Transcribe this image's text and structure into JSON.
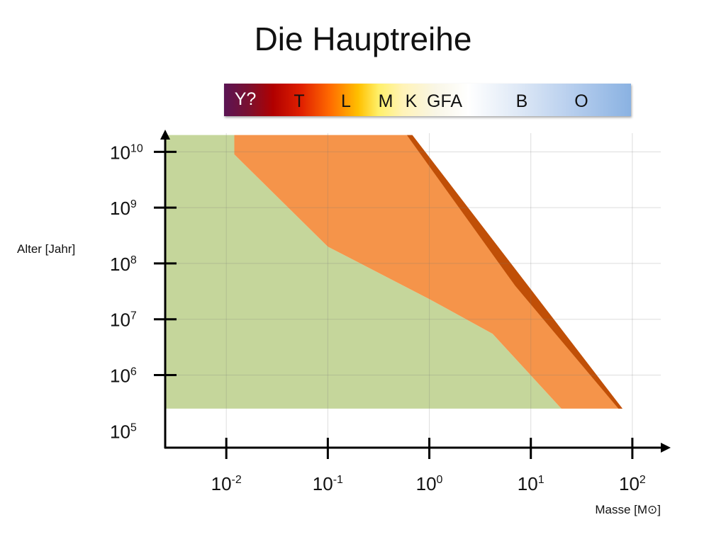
{
  "title": "Die Hauptreihe",
  "spectral_classes": [
    "Y?",
    "T",
    "L",
    "M",
    "K",
    "GFA",
    "B",
    "O"
  ],
  "chart_data": {
    "type": "area",
    "xlabel": "Masse [M⊙]",
    "ylabel": "Alter [Jahr]",
    "x_scale": "log",
    "y_scale": "log",
    "x_ticks": [
      {
        "base": "10",
        "exp": "-2",
        "value": 0.01
      },
      {
        "base": "10",
        "exp": "-1",
        "value": 0.1
      },
      {
        "base": "10",
        "exp": "0",
        "value": 1
      },
      {
        "base": "10",
        "exp": "1",
        "value": 10
      },
      {
        "base": "10",
        "exp": "2",
        "value": 100
      }
    ],
    "y_ticks": [
      {
        "base": "10",
        "exp": "5",
        "value": 100000
      },
      {
        "base": "10",
        "exp": "6",
        "value": 1000000
      },
      {
        "base": "10",
        "exp": "7",
        "value": 10000000
      },
      {
        "base": "10",
        "exp": "8",
        "value": 100000000
      },
      {
        "base": "10",
        "exp": "9",
        "value": 1000000000
      },
      {
        "base": "10",
        "exp": "10",
        "value": 10000000000
      }
    ],
    "xlim": [
      0.0025,
      200
    ],
    "ylim": [
      50000,
      25000000000
    ],
    "grid": true,
    "regions": [
      {
        "color": "#c5d69b",
        "points": [
          [
            0.0025,
            20000000000
          ],
          [
            0.0025,
            250000
          ],
          [
            20,
            250000
          ],
          [
            4.2,
            5500000
          ],
          [
            1,
            23000000
          ],
          [
            0.1,
            200000000
          ],
          [
            0.012,
            9000000000
          ],
          [
            0.012,
            20000000000
          ]
        ]
      },
      {
        "color": "#f5944a",
        "points": [
          [
            0.012,
            20000000000
          ],
          [
            0.012,
            9000000000
          ],
          [
            0.1,
            200000000
          ],
          [
            1,
            23000000
          ],
          [
            4.2,
            5500000
          ],
          [
            20,
            250000
          ],
          [
            80,
            250000
          ],
          [
            0.6,
            20000000000
          ]
        ]
      },
      {
        "color": "#c04f07",
        "points": [
          [
            0.6,
            20000000000
          ],
          [
            0.68,
            20000000000
          ],
          [
            80,
            250000
          ],
          [
            73,
            250000
          ],
          [
            7,
            40000000
          ]
        ]
      }
    ]
  }
}
